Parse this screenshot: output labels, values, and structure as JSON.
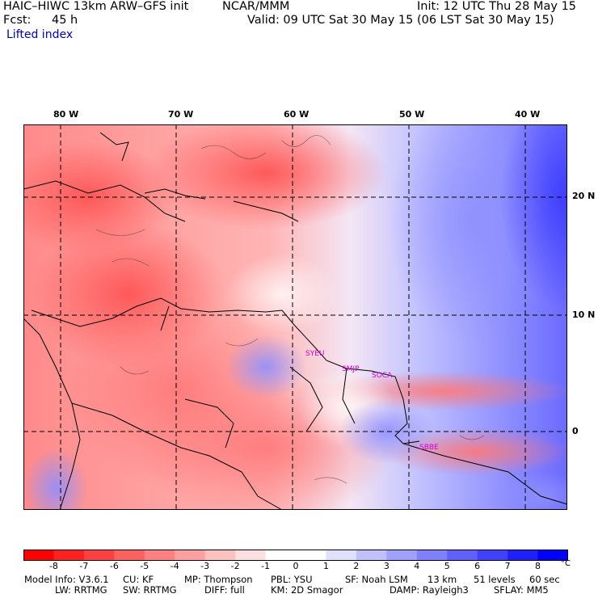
{
  "header": {
    "model": "HAIC–HIWC 13km ARW–GFS init",
    "org": "NCAR/MMM",
    "init": "Init: 12 UTC Thu 28 May 15",
    "fcst_label": "Fcst:",
    "fcst_value": "45 h",
    "valid": "Valid: 09 UTC Sat 30 May 15 (06 LST Sat 30 May 15)",
    "field": "Lifted index"
  },
  "map": {
    "lon_labels": [
      "80 W",
      "70 W",
      "60 W",
      "50 W",
      "40 W"
    ],
    "lat_labels": [
      "20 N",
      "10 N",
      "0"
    ],
    "stations": [
      "SYEU",
      "SMJP",
      "SOCA",
      "SBBE"
    ],
    "colors": {
      "frame": "#000000",
      "coast": "#000000",
      "grid": "#000000"
    }
  },
  "colorbar": {
    "labels": [
      "-8",
      "-7",
      "-6",
      "-5",
      "-4",
      "-3",
      "-2",
      "-1",
      "0",
      "1",
      "2",
      "3",
      "4",
      "5",
      "6",
      "7",
      "8"
    ],
    "unit": "°C",
    "colors": [
      "#ff0000",
      "#ff2020",
      "#ff4040",
      "#ff6060",
      "#ff8080",
      "#ffa0a0",
      "#ffc0c0",
      "#ffe0e0",
      "#ffffff",
      "#ffffff",
      "#e0e0ff",
      "#c0c0ff",
      "#a0a0ff",
      "#8080ff",
      "#6060ff",
      "#4040ff",
      "#2020ff",
      "#0000ff"
    ]
  },
  "footer": {
    "line1": [
      "Model Info: V3.6.1",
      "CU: KF",
      "MP: Thompson",
      "PBL: YSU",
      "SF: Noah LSM",
      "13 km",
      "51 levels",
      "60 sec"
    ],
    "line2": [
      "LW: RRTMG",
      "SW: RRTMG",
      "DIFF: full",
      "KM: 2D Smagor",
      "DAMP: Rayleigh3",
      "SFLAY: MM5"
    ]
  }
}
